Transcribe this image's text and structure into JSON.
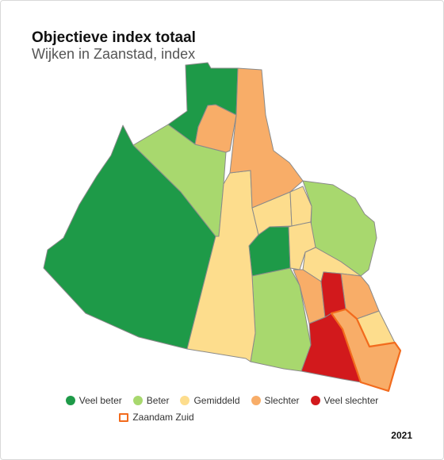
{
  "header": {
    "title": "Objectieve index totaal",
    "subtitle": "Wijken in Zaanstad, index"
  },
  "colors": {
    "veel_beter": "#1e9a48",
    "beter": "#a8d86e",
    "gemiddeld": "#fddd8d",
    "slechter": "#f8ad68",
    "veel_slechter": "#d2191c",
    "highlight_border": "#f26b1d"
  },
  "legend": {
    "items": [
      {
        "label": "Veel beter",
        "color": "#1e9a48"
      },
      {
        "label": "Beter",
        "color": "#a8d86e"
      },
      {
        "label": "Gemiddeld",
        "color": "#fddd8d"
      },
      {
        "label": "Slechter",
        "color": "#f8ad68"
      },
      {
        "label": "Veel slechter",
        "color": "#d2191c"
      }
    ],
    "highlight": {
      "label": "Zaandam Zuid"
    }
  },
  "footer": {
    "year": "2021"
  }
}
